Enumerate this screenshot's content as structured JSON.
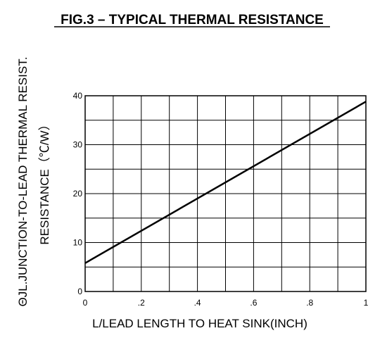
{
  "chart_data": {
    "type": "line",
    "title": "FIG.3 – TYPICAL THERMAL RESISTANCE",
    "xlabel": "L/LEAD LENGTH TO HEAT SINK(INCH)",
    "ylabel_line1": "ΘJL.JUNCTION-TO-LEAD THERMAL RESIST.",
    "ylabel_line2": "RESISTANCE（℃/W）",
    "xlim": [
      0,
      1
    ],
    "ylim": [
      0,
      40
    ],
    "x_ticks": [
      0,
      0.2,
      0.4,
      0.6,
      0.8,
      1
    ],
    "x_tick_labels": [
      "0",
      ".2",
      ".4",
      ".6",
      ".8",
      "1"
    ],
    "y_ticks": [
      0,
      10,
      20,
      30,
      40
    ],
    "y_tick_labels": [
      "0",
      "10",
      "20",
      "30",
      "40"
    ],
    "x_grid_step": 0.1,
    "y_grid_step": 5,
    "grid": true,
    "series": [
      {
        "x": [
          0,
          1
        ],
        "y": [
          5.8,
          38.8
        ]
      }
    ],
    "colors": {
      "line": "#000000",
      "grid": "#000000"
    }
  }
}
